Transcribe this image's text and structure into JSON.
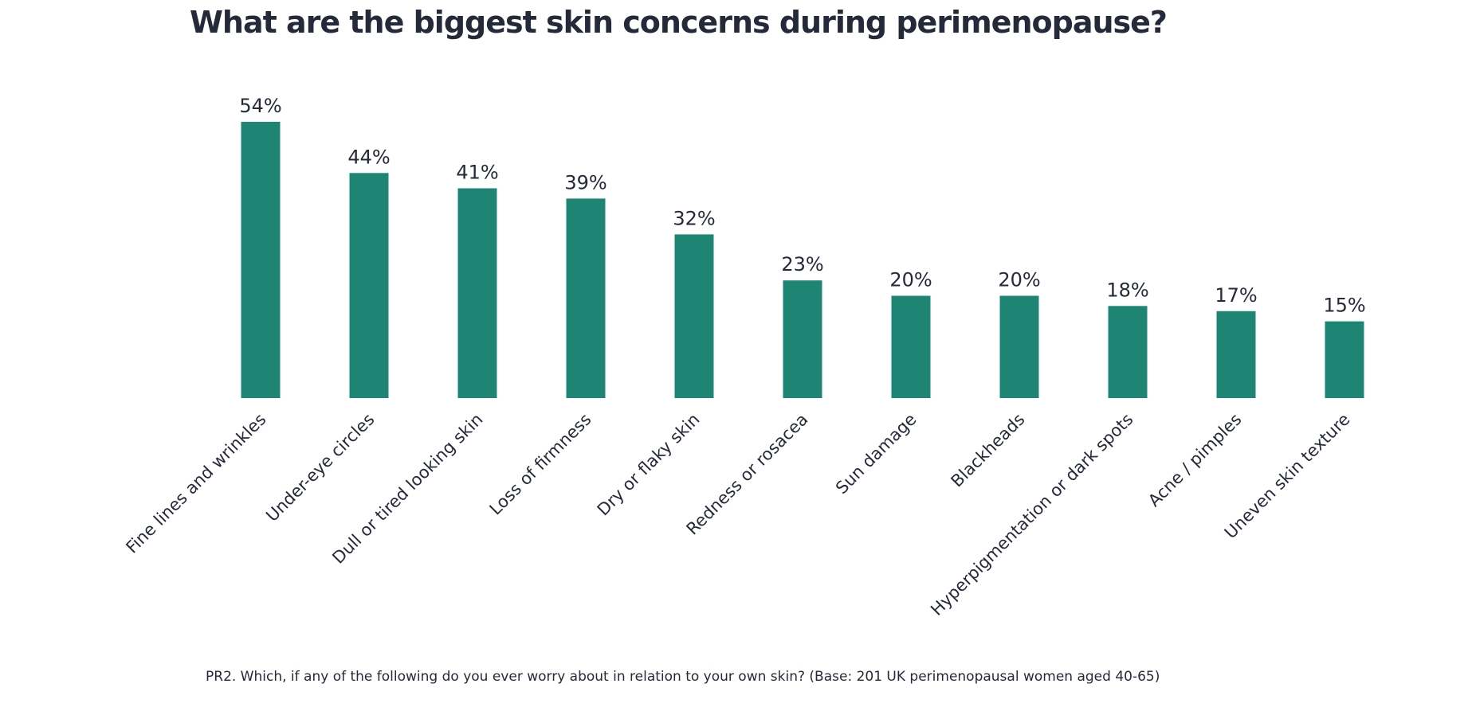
{
  "chart_data": {
    "type": "bar",
    "title": "What are the biggest skin concerns during perimenopause?",
    "categories": [
      "Fine lines and wrinkles",
      "Under-eye circles",
      "Dull or tired looking skin",
      "Loss of firmness",
      "Dry or flaky skin",
      "Redness or rosacea",
      "Sun damage",
      "Blackheads",
      "Hyperpigmentation or dark spots",
      "Acne / pimples",
      "Uneven skin texture"
    ],
    "values": [
      54,
      44,
      41,
      39,
      32,
      23,
      20,
      20,
      18,
      17,
      15
    ],
    "value_labels": [
      "54%",
      "44%",
      "41%",
      "39%",
      "32%",
      "23%",
      "20%",
      "20%",
      "18%",
      "17%",
      "15%"
    ],
    "unit": "%",
    "ylim": [
      0,
      54
    ],
    "grid": false,
    "legend": "none",
    "bar_color": "#1e8575",
    "xlabel": "",
    "ylabel": ""
  },
  "footnote": "PR2. Which, if any of the following do you ever worry about in relation to your own skin? (Base: 201 UK perimenopausal women aged 40-65)",
  "colors": {
    "text": "#252a3a",
    "bar": "#1e8575"
  }
}
